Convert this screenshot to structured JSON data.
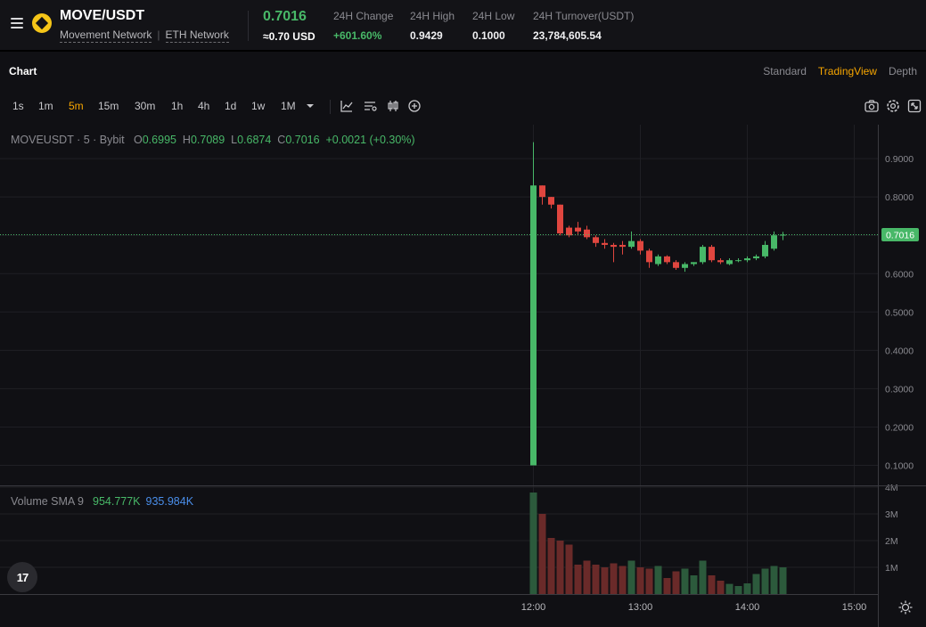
{
  "header": {
    "pair": "MOVE/USDT",
    "network_1": "Movement Network",
    "network_2": "ETH Network",
    "last_price": "0.7016",
    "last_price_usd": "≈0.70 USD",
    "stats": [
      {
        "label": "24H Change",
        "value": "+601.60%",
        "positive": true
      },
      {
        "label": "24H High",
        "value": "0.9429"
      },
      {
        "label": "24H Low",
        "value": "0.1000"
      },
      {
        "label": "24H Turnover(USDT)",
        "value": "23,784,605.54"
      }
    ]
  },
  "chart_header": {
    "title": "Chart",
    "views": [
      "Standard",
      "TradingView",
      "Depth"
    ],
    "active_view": "TradingView"
  },
  "toolbar": {
    "timeframes": [
      "1s",
      "1m",
      "5m",
      "15m",
      "30m",
      "1h",
      "4h",
      "1d",
      "1w",
      "1M"
    ],
    "active_timeframe": "5m"
  },
  "legend": {
    "symbol": "MOVEUSDT · 5 · Bybit",
    "open_label": "O",
    "open": "0.6995",
    "high_label": "H",
    "high": "0.7089",
    "low_label": "L",
    "low": "0.6874",
    "close_label": "C",
    "close": "0.7016",
    "change": "+0.0021 (+0.30%)"
  },
  "volume_legend": {
    "label": "Volume SMA 9",
    "value_1": "954.777K",
    "value_2": "935.984K"
  },
  "tv_logo": "17",
  "colors": {
    "up": "#48b868",
    "down": "#e0463f",
    "accent": "#f7a600",
    "sma": "#4a8eea"
  },
  "chart_data": {
    "type": "candlestick",
    "price_axis": {
      "ticks": [
        0.9,
        0.8,
        0.7,
        0.6,
        0.5,
        0.4,
        0.3,
        0.2,
        0.1
      ],
      "labels": [
        "0.9000",
        "0.8000",
        "0.7000",
        "0.6000",
        "0.5000",
        "0.4000",
        "0.3000",
        "0.2000",
        "0.1000"
      ],
      "current_price": 0.7016,
      "current_label": "0.7016"
    },
    "volume_axis": {
      "ticks": [
        1000000,
        2000000,
        3000000,
        4000000
      ],
      "labels": [
        "1M",
        "2M",
        "3M",
        "4M"
      ]
    },
    "time_axis": {
      "labels": [
        "12:00",
        "13:00",
        "14:00",
        "15:00"
      ],
      "minutes": [
        720,
        780,
        840,
        900
      ]
    },
    "interval_minutes": 5,
    "candles": [
      {
        "t": 720,
        "o": 0.1,
        "h": 0.9429,
        "l": 0.1,
        "c": 0.83,
        "v": 3800000
      },
      {
        "t": 725,
        "o": 0.83,
        "h": 0.83,
        "l": 0.78,
        "c": 0.8,
        "v": 3000000
      },
      {
        "t": 730,
        "o": 0.8,
        "h": 0.8,
        "l": 0.77,
        "c": 0.78,
        "v": 2100000
      },
      {
        "t": 735,
        "o": 0.78,
        "h": 0.78,
        "l": 0.7,
        "c": 0.705,
        "v": 2000000
      },
      {
        "t": 740,
        "o": 0.72,
        "h": 0.725,
        "l": 0.695,
        "c": 0.7,
        "v": 1850000
      },
      {
        "t": 745,
        "o": 0.72,
        "h": 0.735,
        "l": 0.7,
        "c": 0.71,
        "v": 1100000
      },
      {
        "t": 750,
        "o": 0.715,
        "h": 0.725,
        "l": 0.69,
        "c": 0.695,
        "v": 1250000
      },
      {
        "t": 755,
        "o": 0.695,
        "h": 0.7,
        "l": 0.67,
        "c": 0.68,
        "v": 1100000
      },
      {
        "t": 760,
        "o": 0.68,
        "h": 0.69,
        "l": 0.665,
        "c": 0.675,
        "v": 1000000
      },
      {
        "t": 765,
        "o": 0.675,
        "h": 0.68,
        "l": 0.63,
        "c": 0.67,
        "v": 1150000
      },
      {
        "t": 770,
        "o": 0.675,
        "h": 0.685,
        "l": 0.65,
        "c": 0.67,
        "v": 1050000
      },
      {
        "t": 775,
        "o": 0.67,
        "h": 0.71,
        "l": 0.665,
        "c": 0.685,
        "v": 1250000
      },
      {
        "t": 780,
        "o": 0.685,
        "h": 0.69,
        "l": 0.65,
        "c": 0.66,
        "v": 1000000
      },
      {
        "t": 785,
        "o": 0.66,
        "h": 0.665,
        "l": 0.615,
        "c": 0.63,
        "v": 950000
      },
      {
        "t": 790,
        "o": 0.625,
        "h": 0.65,
        "l": 0.62,
        "c": 0.645,
        "v": 1050000
      },
      {
        "t": 795,
        "o": 0.645,
        "h": 0.648,
        "l": 0.625,
        "c": 0.63,
        "v": 600000
      },
      {
        "t": 800,
        "o": 0.63,
        "h": 0.635,
        "l": 0.61,
        "c": 0.615,
        "v": 850000
      },
      {
        "t": 805,
        "o": 0.615,
        "h": 0.63,
        "l": 0.605,
        "c": 0.625,
        "v": 950000
      },
      {
        "t": 810,
        "o": 0.625,
        "h": 0.63,
        "l": 0.62,
        "c": 0.63,
        "v": 700000
      },
      {
        "t": 815,
        "o": 0.63,
        "h": 0.675,
        "l": 0.625,
        "c": 0.67,
        "v": 1250000
      },
      {
        "t": 820,
        "o": 0.67,
        "h": 0.675,
        "l": 0.63,
        "c": 0.635,
        "v": 700000
      },
      {
        "t": 825,
        "o": 0.635,
        "h": 0.64,
        "l": 0.625,
        "c": 0.63,
        "v": 500000
      },
      {
        "t": 830,
        "o": 0.625,
        "h": 0.64,
        "l": 0.622,
        "c": 0.635,
        "v": 380000
      },
      {
        "t": 835,
        "o": 0.635,
        "h": 0.64,
        "l": 0.63,
        "c": 0.635,
        "v": 300000
      },
      {
        "t": 840,
        "o": 0.635,
        "h": 0.645,
        "l": 0.63,
        "c": 0.64,
        "v": 400000
      },
      {
        "t": 845,
        "o": 0.64,
        "h": 0.65,
        "l": 0.635,
        "c": 0.645,
        "v": 750000
      },
      {
        "t": 850,
        "o": 0.645,
        "h": 0.685,
        "l": 0.64,
        "c": 0.675,
        "v": 950000
      },
      {
        "t": 855,
        "o": 0.665,
        "h": 0.71,
        "l": 0.66,
        "c": 0.7,
        "v": 1050000
      },
      {
        "t": 860,
        "o": 0.6995,
        "h": 0.7089,
        "l": 0.6874,
        "c": 0.7016,
        "v": 1000000
      }
    ]
  }
}
